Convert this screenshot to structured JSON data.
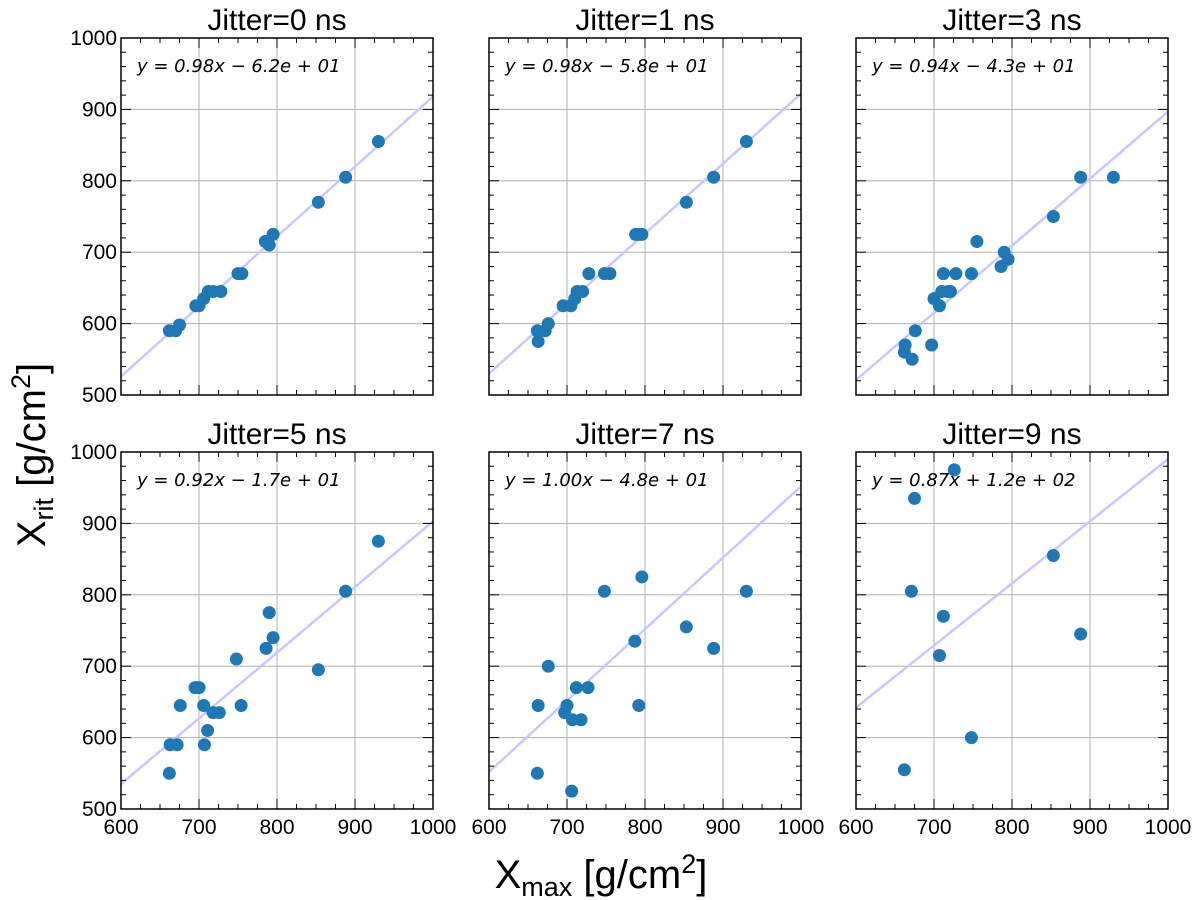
{
  "figure": {
    "ylabel_main": "X",
    "ylabel_sub": "rit",
    "ylabel_unit": " [g/cm",
    "ylabel_sup": "2",
    "ylabel_close": "]",
    "xlabel_main": "X",
    "xlabel_sub": "max",
    "xlabel_unit": " [g/cm",
    "xlabel_sup": "2",
    "xlabel_close": "]"
  },
  "chart_data": [
    {
      "type": "scatter",
      "title": "Jitter=0 ns",
      "equation": "y = 0.98x − 6.2e + 01",
      "fit": {
        "slope": 0.98,
        "intercept": -62
      },
      "xlim": [
        600,
        1000
      ],
      "ylim": [
        500,
        1000
      ],
      "xticks": [
        600,
        700,
        800,
        900,
        1000
      ],
      "yticks": [
        500,
        600,
        700,
        800,
        900,
        1000
      ],
      "show_xticklabels": false,
      "show_yticklabels": true,
      "grid": true,
      "point_color": "#1f77b4",
      "fit_color": "#c8c8ff",
      "x": [
        662,
        670,
        675,
        696,
        700,
        706,
        712,
        718,
        728,
        750,
        755,
        785,
        790,
        795,
        853,
        888,
        930
      ],
      "y": [
        590,
        590,
        598,
        625,
        625,
        635,
        645,
        645,
        645,
        670,
        670,
        715,
        710,
        725,
        770,
        805,
        855
      ]
    },
    {
      "type": "scatter",
      "title": "Jitter=1 ns",
      "equation": "y = 0.98x − 5.8e + 01",
      "fit": {
        "slope": 0.98,
        "intercept": -58
      },
      "xlim": [
        600,
        1000
      ],
      "ylim": [
        500,
        1000
      ],
      "xticks": [
        600,
        700,
        800,
        900,
        1000
      ],
      "yticks": [
        500,
        600,
        700,
        800,
        900,
        1000
      ],
      "show_xticklabels": false,
      "show_yticklabels": false,
      "grid": true,
      "point_color": "#1f77b4",
      "fit_color": "#c8c8ff",
      "x": [
        662,
        663,
        672,
        676,
        695,
        705,
        710,
        713,
        720,
        728,
        748,
        755,
        788,
        792,
        796,
        853,
        888,
        930
      ],
      "y": [
        590,
        575,
        590,
        600,
        625,
        625,
        635,
        645,
        645,
        670,
        670,
        670,
        725,
        725,
        725,
        770,
        805,
        855
      ]
    },
    {
      "type": "scatter",
      "title": "Jitter=3 ns",
      "equation": "y = 0.94x − 4.3e + 01",
      "fit": {
        "slope": 0.94,
        "intercept": -43
      },
      "xlim": [
        600,
        1000
      ],
      "ylim": [
        500,
        1000
      ],
      "xticks": [
        600,
        700,
        800,
        900,
        1000
      ],
      "yticks": [
        500,
        600,
        700,
        800,
        900,
        1000
      ],
      "show_xticklabels": false,
      "show_yticklabels": false,
      "grid": true,
      "point_color": "#1f77b4",
      "fit_color": "#c8c8ff",
      "x": [
        662,
        663,
        672,
        676,
        697,
        700,
        707,
        710,
        712,
        718,
        721,
        728,
        748,
        755,
        786,
        790,
        795,
        853,
        888,
        930
      ],
      "y": [
        560,
        570,
        550,
        590,
        570,
        635,
        625,
        645,
        670,
        645,
        645,
        670,
        670,
        715,
        680,
        700,
        690,
        750,
        805,
        805
      ]
    },
    {
      "type": "scatter",
      "title": "Jitter=5 ns",
      "equation": "y = 0.92x − 1.7e + 01",
      "fit": {
        "slope": 0.92,
        "intercept": -17
      },
      "xlim": [
        600,
        1000
      ],
      "ylim": [
        500,
        1000
      ],
      "xticks": [
        600,
        700,
        800,
        900,
        1000
      ],
      "yticks": [
        500,
        600,
        700,
        800,
        900,
        1000
      ],
      "show_xticklabels": true,
      "show_yticklabels": true,
      "grid": true,
      "point_color": "#1f77b4",
      "fit_color": "#c8c8ff",
      "x": [
        662,
        663,
        672,
        676,
        695,
        700,
        706,
        707,
        711,
        718,
        726,
        748,
        754,
        786,
        790,
        795,
        853,
        888,
        930
      ],
      "y": [
        550,
        590,
        590,
        645,
        670,
        670,
        645,
        590,
        610,
        635,
        635,
        710,
        645,
        725,
        775,
        740,
        695,
        805,
        875
      ]
    },
    {
      "type": "scatter",
      "title": "Jitter=7 ns",
      "equation": "y = 1.00x − 4.8e + 01",
      "fit": {
        "slope": 1.0,
        "intercept": -48
      },
      "xlim": [
        600,
        1000
      ],
      "ylim": [
        500,
        1000
      ],
      "xticks": [
        600,
        700,
        800,
        900,
        1000
      ],
      "yticks": [
        500,
        600,
        700,
        800,
        900,
        1000
      ],
      "show_xticklabels": true,
      "show_yticklabels": false,
      "grid": true,
      "point_color": "#1f77b4",
      "fit_color": "#c8c8ff",
      "x": [
        662,
        663,
        676,
        697,
        700,
        706,
        707,
        712,
        718,
        727,
        748,
        787,
        792,
        796,
        853,
        888,
        930
      ],
      "y": [
        550,
        645,
        700,
        635,
        645,
        525,
        625,
        670,
        625,
        670,
        805,
        735,
        645,
        825,
        755,
        725,
        805
      ]
    },
    {
      "type": "scatter",
      "title": "Jitter=9 ns",
      "equation": "y = 0.87x + 1.2e + 02",
      "fit": {
        "slope": 0.87,
        "intercept": 120
      },
      "xlim": [
        600,
        1000
      ],
      "ylim": [
        500,
        1000
      ],
      "xticks": [
        600,
        700,
        800,
        900,
        1000
      ],
      "yticks": [
        500,
        600,
        700,
        800,
        900,
        1000
      ],
      "show_xticklabels": true,
      "show_yticklabels": false,
      "grid": true,
      "point_color": "#1f77b4",
      "fit_color": "#c8c8ff",
      "x": [
        662,
        671,
        675,
        707,
        712,
        726,
        748,
        853,
        888
      ],
      "y": [
        555,
        805,
        935,
        715,
        770,
        975,
        600,
        855,
        745
      ]
    }
  ]
}
